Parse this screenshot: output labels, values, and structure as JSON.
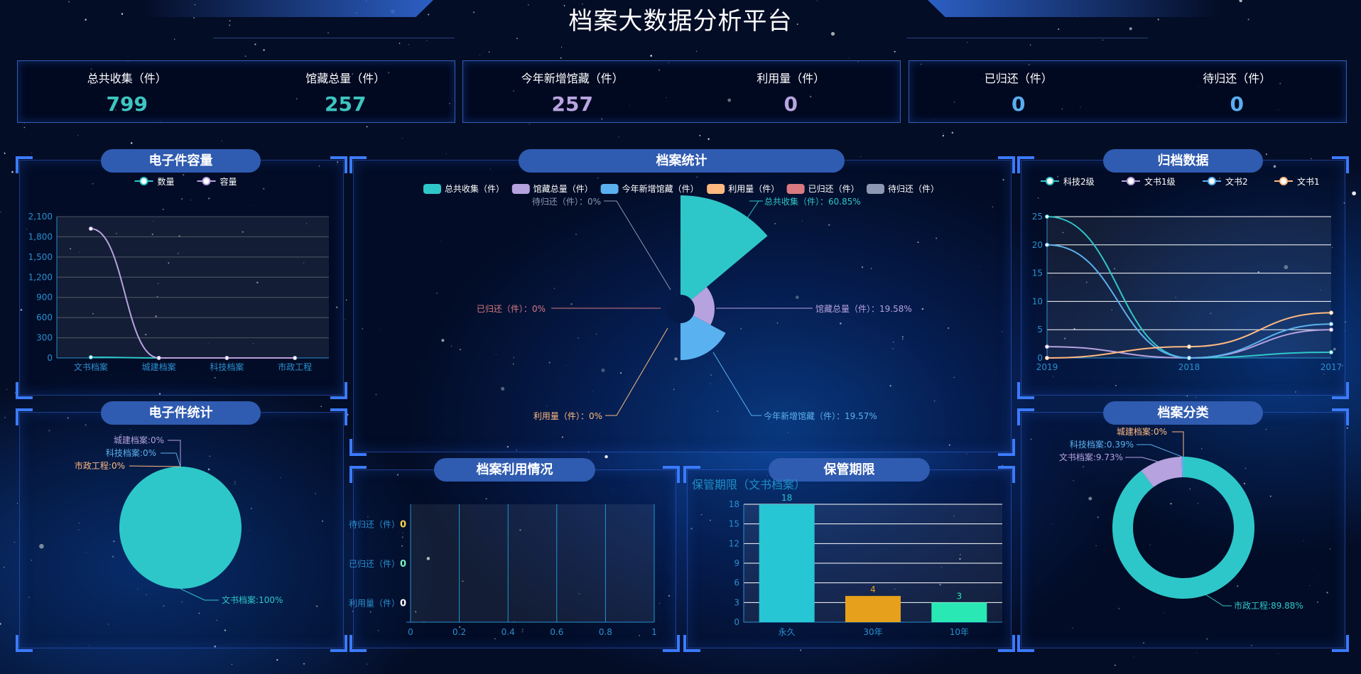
{
  "header": {
    "title": "档案大数据分析平台"
  },
  "colors": {
    "teal": "#2ec7c9",
    "purple": "#b6a2de",
    "blue": "#5ab1ef",
    "orange": "#ffb980",
    "red": "#d87a80",
    "gray": "#8d98b3",
    "axis": "#2a8fd0",
    "pill": "#2f5bb0",
    "bracket": "#3b7bff"
  },
  "stats": [
    {
      "items": [
        {
          "label": "总共收集（件）",
          "value": "799",
          "color": "#3ec5c0"
        },
        {
          "label": "馆藏总量（件）",
          "value": "257",
          "color": "#3ec5c0"
        }
      ]
    },
    {
      "items": [
        {
          "label": "今年新增馆藏（件）",
          "value": "257",
          "color": "#b9a4e0"
        },
        {
          "label": "利用量（件）",
          "value": "0",
          "color": "#b9a4e0"
        }
      ]
    },
    {
      "items": [
        {
          "label": "已归还（件）",
          "value": "0",
          "color": "#5aaef0"
        },
        {
          "label": "待归还（件）",
          "value": "0",
          "color": "#5aaef0"
        }
      ]
    }
  ],
  "panels": {
    "capacity": "电子件容量",
    "stats": "档案统计",
    "archive": "归档数据",
    "estats": "电子件统计",
    "usage": "档案利用情况",
    "retention": "保管期限",
    "category": "档案分类"
  },
  "chart_data": [
    {
      "id": "capacity",
      "type": "line",
      "categories": [
        "文书档案",
        "城建档案",
        "科技档案",
        "市政工程"
      ],
      "ylim": [
        0,
        2100
      ],
      "yticks": [
        0,
        300,
        600,
        900,
        1200,
        1500,
        1800,
        2100
      ],
      "grid": true,
      "legend": "top",
      "series": [
        {
          "name": "数量",
          "values": [
            10,
            0,
            0,
            0
          ],
          "color": "#2ec7c9"
        },
        {
          "name": "容量",
          "values": [
            1920,
            0,
            0,
            0
          ],
          "color": "#b6a2de"
        }
      ]
    },
    {
      "id": "stats",
      "type": "pie",
      "rose": true,
      "legend": "top",
      "slices": [
        {
          "name": "总共收集（件）",
          "percent": "60.85%",
          "value": 799,
          "color": "#2ec7c9"
        },
        {
          "name": "馆藏总量（件）",
          "percent": "19.58%",
          "value": 257,
          "color": "#b6a2de"
        },
        {
          "name": "今年新增馆藏（件）",
          "percent": "19.57%",
          "value": 257,
          "color": "#5ab1ef"
        },
        {
          "name": "利用量（件）",
          "percent": "0%",
          "value": 0,
          "color": "#ffb980"
        },
        {
          "name": "已归还（件）",
          "percent": "0%",
          "value": 0,
          "color": "#d87a80"
        },
        {
          "name": "待归还（件）",
          "percent": "0%",
          "value": 0,
          "color": "#8d98b3"
        }
      ]
    },
    {
      "id": "archive",
      "type": "line",
      "categories": [
        "2019",
        "2018",
        "2017"
      ],
      "ylim": [
        0,
        25
      ],
      "yticks": [
        0,
        5,
        10,
        15,
        20,
        25
      ],
      "grid": true,
      "legend": "top",
      "series": [
        {
          "name": "科技2级",
          "values": [
            25,
            0,
            1
          ],
          "color": "#2ec7c9"
        },
        {
          "name": "文书1级",
          "values": [
            2,
            0,
            5
          ],
          "color": "#b6a2de"
        },
        {
          "name": "文书2",
          "values": [
            20,
            0,
            6
          ],
          "color": "#5ab1ef"
        },
        {
          "name": "文书1",
          "values": [
            0,
            2,
            8
          ],
          "color": "#ffb980"
        }
      ]
    },
    {
      "id": "estats",
      "type": "pie",
      "slices": [
        {
          "name": "文书档案",
          "percent": "100%",
          "color": "#2ec7c9"
        },
        {
          "name": "城建档案",
          "percent": "0%",
          "color": "#b6a2de"
        },
        {
          "name": "科技档案",
          "percent": "0%",
          "color": "#5ab1ef"
        },
        {
          "name": "市政工程",
          "percent": "0%",
          "color": "#ffb980"
        }
      ]
    },
    {
      "id": "usage",
      "type": "bar",
      "orientation": "horizontal",
      "categories": [
        "利用量（件）",
        "已归还（件）",
        "待归还（件）"
      ],
      "values": [
        0,
        0,
        0
      ],
      "value_colors": [
        "#ffffff",
        "#7ff0c0",
        "#ffd54f"
      ],
      "xlim": [
        0,
        1
      ],
      "xticks": [
        "0",
        "0.2",
        "0.4",
        "0.6",
        "0.8",
        "1"
      ],
      "grid": true
    },
    {
      "id": "retention",
      "type": "bar",
      "title": "保管期限（文书档案）",
      "categories": [
        "永久",
        "30年",
        "10年"
      ],
      "values": [
        18,
        4,
        3
      ],
      "colors": [
        "#26c6d4",
        "#e6a01b",
        "#2ae8b4"
      ],
      "ylim": [
        0,
        18
      ],
      "yticks": [
        0,
        3,
        6,
        9,
        12,
        15,
        18
      ],
      "grid": true
    },
    {
      "id": "category",
      "type": "pie",
      "donut": true,
      "slices": [
        {
          "name": "市政工程",
          "percent": "89.88%",
          "value": 89.88,
          "color": "#2ec7c9"
        },
        {
          "name": "文书档案",
          "percent": "9.73%",
          "value": 9.73,
          "color": "#b6a2de"
        },
        {
          "name": "科技档案",
          "percent": "0.39%",
          "value": 0.39,
          "color": "#5ab1ef"
        },
        {
          "name": "城建档案",
          "percent": "0%",
          "value": 0,
          "color": "#ffb980"
        }
      ]
    }
  ]
}
